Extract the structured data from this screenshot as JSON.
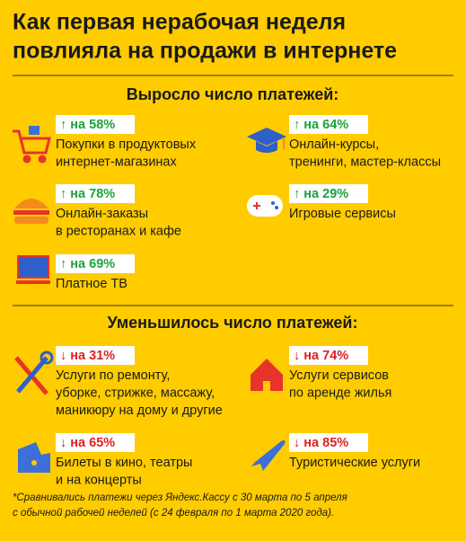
{
  "header": {
    "title_lines": [
      "Как первая нерабочая неделя",
      "повлияла на продажи в интернете"
    ]
  },
  "sections": [
    {
      "heading": "Выросло число платежей:",
      "items": [
        {
          "badge": "↑ на 58%",
          "lines": [
            "Покупки в продуктовых",
            "интернет-магазинах"
          ]
        },
        {
          "badge": "↑ на 64%",
          "lines": [
            "Онлайн-курсы,",
            "тренинги, мастер-классы"
          ]
        },
        {
          "badge": "↑ на 78%",
          "lines": [
            "Онлайн-заказы",
            "в ресторанах и кафе"
          ]
        },
        {
          "badge": "↑ на 29%",
          "lines": [
            "Игровые сервисы"
          ]
        },
        {
          "badge": "↑ на 69%",
          "lines": [
            "Платное ТВ"
          ]
        }
      ]
    },
    {
      "heading": "Уменьшилось число платежей:",
      "items": [
        {
          "badge": "↓ на 31%",
          "lines": [
            "Услуги по ремонту,",
            "уборке, стрижке, массажу,",
            "маникюру на дому и другие"
          ]
        },
        {
          "badge": "↓ на 74%",
          "lines": [
            "Услуги сервисов",
            "по аренде жилья"
          ]
        },
        {
          "badge": "↓ на 65%",
          "lines": [
            "Билеты в кино, театры",
            "и на концерты"
          ]
        },
        {
          "badge": "↓ на 85%",
          "lines": [
            "Туристические услуги"
          ]
        }
      ]
    }
  ],
  "footnote": [
    "*Сравнивались платежи через Яндекс.Кассу с 30 марта по 5 апреля",
    "с обычной рабочей неделей (с 24 февраля по 1 марта 2020 года)."
  ]
}
